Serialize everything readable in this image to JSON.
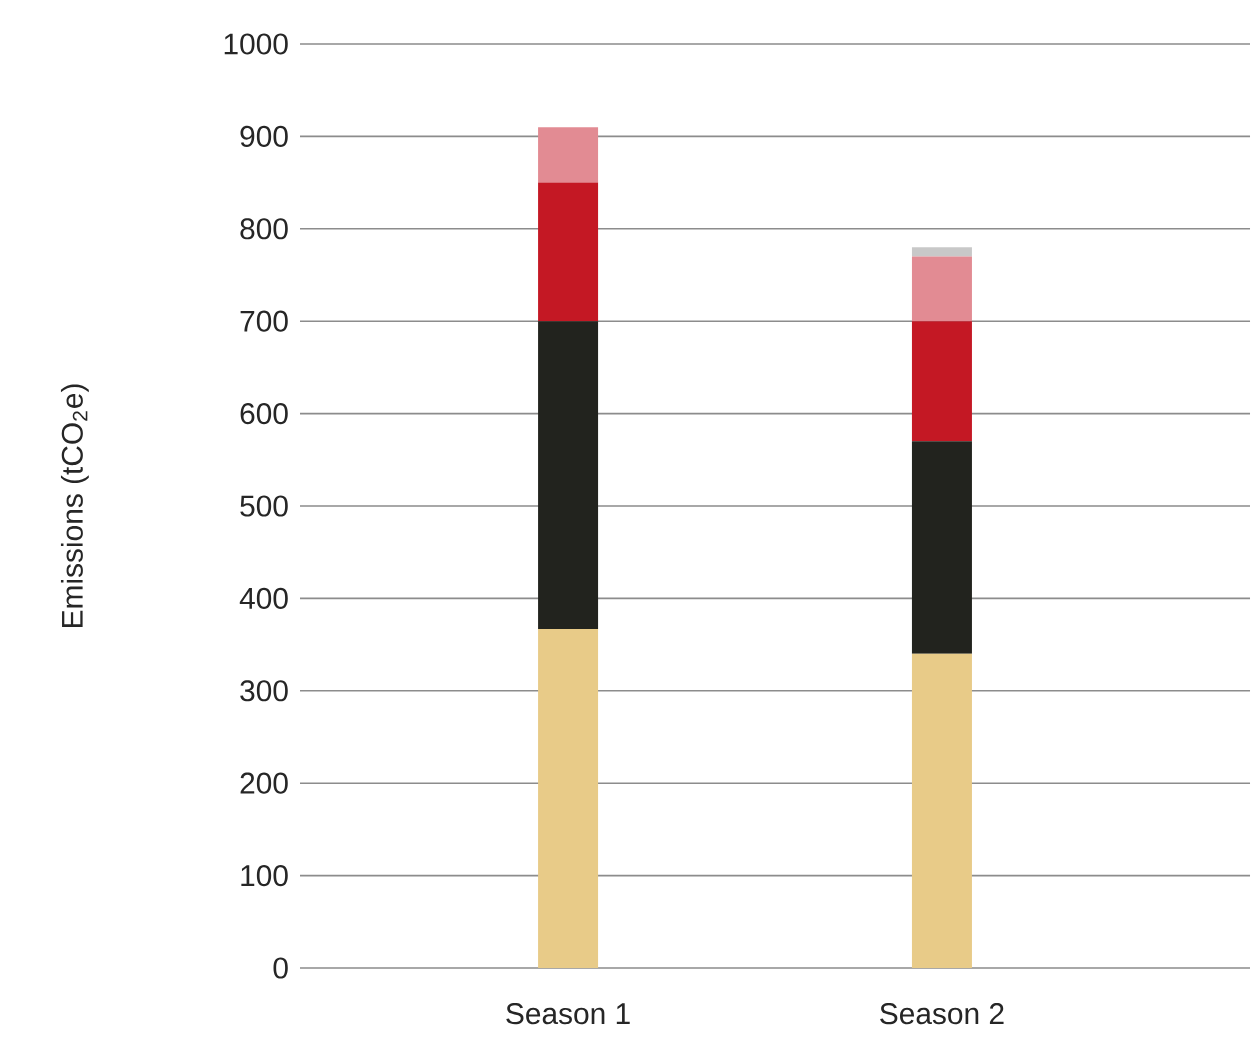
{
  "chart_data": {
    "type": "bar",
    "stacked": true,
    "ylabel": "Emissions (tCO$_{2}$e)",
    "categories": [
      "Season 1",
      "Season 2"
    ],
    "series": [
      {
        "color": "#e8cb88",
        "values": [
          367,
          340
        ]
      },
      {
        "color": "#22231e",
        "values": [
          333,
          230
        ]
      },
      {
        "color": "#c41824",
        "values": [
          150,
          130
        ]
      },
      {
        "color": "#e28b93",
        "values": [
          60,
          70
        ]
      },
      {
        "color": "#c8c8c8",
        "values": [
          null,
          10
        ]
      }
    ],
    "ylim": [
      0,
      1000
    ],
    "yticks": [
      0,
      100,
      200,
      300,
      400,
      500,
      600,
      700,
      800,
      900,
      1000
    ],
    "grid": "y"
  }
}
